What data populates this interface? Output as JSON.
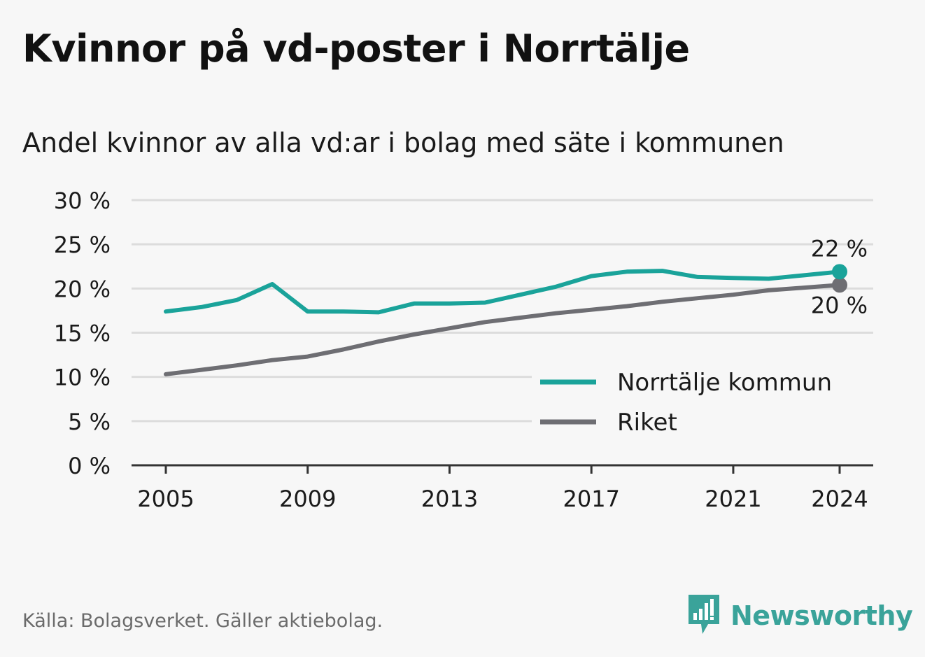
{
  "title": "Kvinnor på vd-poster i Norrtälje",
  "subtitle": "Andel kvinnor av alla vd:ar i bolag med säte i kommunen",
  "source": "Källa: Bolagsverket. Gäller aktiebolag.",
  "brand": {
    "name": "Newsworthy",
    "icon": "bar-chart-speech-bubble-icon"
  },
  "colors": {
    "norrtalje": "#1aa39a",
    "riket": "#6e6e73",
    "grid": "#dcdcdc",
    "axis": "#333333"
  },
  "chart_data": {
    "type": "line",
    "x": [
      2005,
      2006,
      2007,
      2008,
      2009,
      2010,
      2011,
      2012,
      2013,
      2014,
      2015,
      2016,
      2017,
      2018,
      2019,
      2020,
      2021,
      2022,
      2023,
      2024
    ],
    "series": [
      {
        "name": "Norrtälje kommun",
        "values": [
          17.4,
          17.9,
          18.7,
          20.5,
          17.4,
          17.4,
          17.3,
          18.3,
          18.3,
          18.4,
          19.3,
          20.2,
          21.4,
          21.9,
          22.0,
          21.3,
          21.2,
          21.1,
          21.5,
          21.9
        ],
        "end_label": "22 %"
      },
      {
        "name": "Riket",
        "values": [
          10.3,
          10.8,
          11.3,
          11.9,
          12.3,
          13.1,
          14.0,
          14.8,
          15.5,
          16.2,
          16.7,
          17.2,
          17.6,
          18.0,
          18.5,
          18.9,
          19.3,
          19.8,
          20.1,
          20.4
        ],
        "end_label": "20 %"
      }
    ],
    "ylim": [
      0,
      30
    ],
    "yticks": [
      0,
      5,
      10,
      15,
      20,
      25,
      30
    ],
    "ytick_labels": [
      "0 %",
      "5 %",
      "10 %",
      "15 %",
      "20 %",
      "25 %",
      "30 %"
    ],
    "xticks": [
      2005,
      2009,
      2013,
      2017,
      2021,
      2024
    ],
    "xtick_labels": [
      "2005",
      "2009",
      "2013",
      "2017",
      "2021",
      "2024"
    ],
    "grid": true,
    "legend_position": "bottom-right"
  }
}
